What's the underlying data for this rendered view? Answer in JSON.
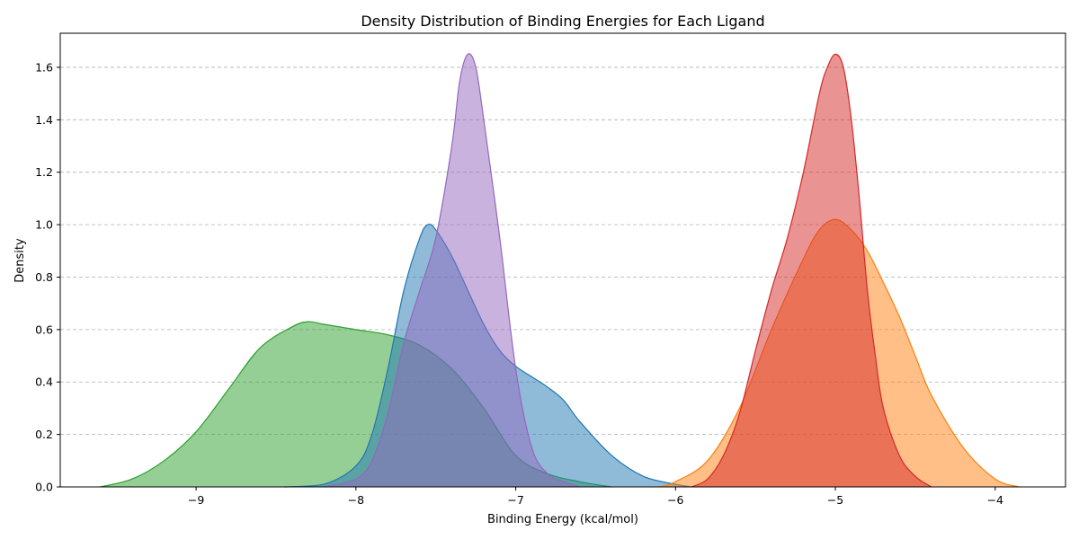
{
  "chart_data": {
    "type": "area",
    "title": "Density Distribution of Binding Energies for Each Ligand",
    "xlabel": "Binding Energy (kcal/mol)",
    "ylabel": "Density",
    "xlim": [
      -9.85,
      -3.56
    ],
    "ylim": [
      0,
      1.73
    ],
    "grid": "y-dashed",
    "legend": "none",
    "x_ticks": [
      -9,
      -8,
      -7,
      -6,
      -5,
      -4
    ],
    "x_tick_labels": [
      "−9",
      "−8",
      "−7",
      "−6",
      "−5",
      "−4"
    ],
    "y_ticks": [
      0.0,
      0.2,
      0.4,
      0.6,
      0.8,
      1.0,
      1.2,
      1.4,
      1.6
    ],
    "y_tick_labels": [
      "0.0",
      "0.2",
      "0.4",
      "0.6",
      "0.8",
      "1.0",
      "1.2",
      "1.4",
      "1.6"
    ],
    "series": [
      {
        "color": "#2ca02c",
        "fill_opacity": 0.5,
        "x": [
          -9.6,
          -9.4,
          -9.2,
          -9.0,
          -8.8,
          -8.6,
          -8.4,
          -8.3,
          -8.2,
          -8.0,
          -7.8,
          -7.6,
          -7.4,
          -7.2,
          -7.0,
          -6.8,
          -6.6,
          -6.4
        ],
        "y": [
          0.0,
          0.03,
          0.1,
          0.21,
          0.37,
          0.53,
          0.61,
          0.63,
          0.62,
          0.6,
          0.58,
          0.54,
          0.45,
          0.3,
          0.12,
          0.05,
          0.02,
          0.0
        ]
      },
      {
        "color": "#1f77b4",
        "fill_opacity": 0.5,
        "x": [
          -8.45,
          -8.2,
          -8.0,
          -7.9,
          -7.8,
          -7.7,
          -7.6,
          -7.55,
          -7.5,
          -7.4,
          -7.3,
          -7.2,
          -7.1,
          -7.0,
          -6.9,
          -6.8,
          -6.7,
          -6.6,
          -6.4,
          -6.2,
          -6.0,
          -5.9
        ],
        "y": [
          0.0,
          0.01,
          0.08,
          0.2,
          0.45,
          0.75,
          0.95,
          1.0,
          0.98,
          0.88,
          0.75,
          0.62,
          0.52,
          0.46,
          0.42,
          0.38,
          0.33,
          0.25,
          0.12,
          0.04,
          0.01,
          0.0
        ]
      },
      {
        "color": "#9467bd",
        "fill_opacity": 0.5,
        "x": [
          -8.2,
          -8.0,
          -7.9,
          -7.8,
          -7.7,
          -7.6,
          -7.5,
          -7.4,
          -7.35,
          -7.3,
          -7.25,
          -7.2,
          -7.1,
          -7.0,
          -6.9,
          -6.8,
          -6.7,
          -6.6
        ],
        "y": [
          0.0,
          0.03,
          0.1,
          0.28,
          0.55,
          0.75,
          0.95,
          1.3,
          1.55,
          1.65,
          1.6,
          1.4,
          0.95,
          0.45,
          0.15,
          0.05,
          0.02,
          0.0
        ]
      },
      {
        "color": "#ff7f0e",
        "fill_opacity": 0.5,
        "x": [
          -6.1,
          -6.0,
          -5.8,
          -5.6,
          -5.4,
          -5.2,
          -5.1,
          -5.0,
          -4.9,
          -4.8,
          -4.7,
          -4.6,
          -4.5,
          -4.4,
          -4.2,
          -4.0,
          -3.85
        ],
        "y": [
          0.0,
          0.02,
          0.1,
          0.3,
          0.6,
          0.87,
          0.98,
          1.02,
          0.98,
          0.9,
          0.78,
          0.65,
          0.5,
          0.35,
          0.15,
          0.03,
          0.0
        ]
      },
      {
        "color": "#d62728",
        "fill_opacity": 0.5,
        "x": [
          -5.9,
          -5.8,
          -5.7,
          -5.6,
          -5.5,
          -5.4,
          -5.3,
          -5.2,
          -5.1,
          -5.05,
          -5.0,
          -4.95,
          -4.9,
          -4.85,
          -4.8,
          -4.75,
          -4.7,
          -4.6,
          -4.5,
          -4.4
        ],
        "y": [
          0.0,
          0.03,
          0.12,
          0.28,
          0.52,
          0.75,
          0.95,
          1.2,
          1.5,
          1.6,
          1.65,
          1.6,
          1.4,
          1.1,
          0.75,
          0.5,
          0.3,
          0.12,
          0.04,
          0.0
        ]
      }
    ]
  }
}
